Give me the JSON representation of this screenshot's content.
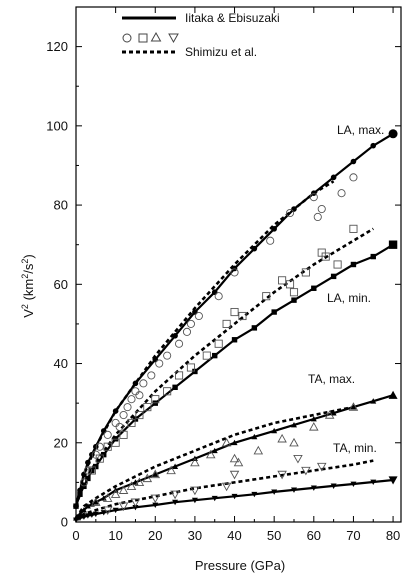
{
  "chart_data": {
    "type": "scatter",
    "xlabel": "Pressure (GPa)",
    "ylabel_main": "V",
    "ylabel_sup1": "2",
    "ylabel_unit": " (km",
    "ylabel_sup2": "2",
    "ylabel_unit2": "/s",
    "ylabel_sup3": "2",
    "ylabel_close": ")",
    "xlim": [
      0,
      82
    ],
    "ylim": [
      0,
      130
    ],
    "xticks": [
      0,
      10,
      20,
      30,
      40,
      50,
      60,
      70,
      80
    ],
    "yticks": [
      0,
      20,
      40,
      60,
      80,
      100,
      120
    ],
    "grid": false,
    "legend_position": "top-left",
    "legend": {
      "solid_label": "Iitaka & Ebisuzaki",
      "dashed_label": "Shimizu et al."
    },
    "annotations": [
      "LA, max.",
      "LA, min.",
      "TA, max.",
      "TA, min."
    ],
    "series": [
      {
        "name": "LA, max.",
        "style": "solid-circle",
        "x": [
          0,
          1,
          2,
          3,
          4,
          5,
          7,
          10,
          15,
          20,
          25,
          30,
          35,
          40,
          45,
          50,
          55,
          60,
          65,
          70,
          75,
          80
        ],
        "y": [
          4,
          8,
          12,
          15,
          17,
          19,
          23,
          28,
          35,
          41,
          47,
          53,
          58,
          64,
          69,
          74,
          79,
          83,
          87,
          91,
          95,
          98
        ]
      },
      {
        "name": "LA, max. (Shimizu)",
        "style": "dashed",
        "x": [
          0,
          2,
          5,
          10,
          20,
          30,
          40,
          50,
          60,
          65
        ],
        "y": [
          4,
          12,
          19,
          28,
          42,
          54,
          65,
          75,
          83,
          86
        ]
      },
      {
        "name": "LA, min.",
        "style": "solid-square",
        "x": [
          0,
          1,
          2,
          3,
          4,
          5,
          7,
          10,
          15,
          20,
          25,
          30,
          35,
          40,
          45,
          50,
          55,
          60,
          65,
          70,
          75,
          80
        ],
        "y": [
          4,
          7,
          9,
          11,
          13,
          14,
          17,
          21,
          26,
          30,
          34,
          38,
          42,
          46,
          49,
          53,
          56,
          59,
          62,
          65,
          67,
          70
        ]
      },
      {
        "name": "LA, min. (Shimizu)",
        "style": "dashed",
        "x": [
          0,
          2,
          5,
          10,
          20,
          30,
          40,
          50,
          60,
          70,
          75
        ],
        "y": [
          4,
          10,
          15,
          22,
          33,
          42,
          50,
          58,
          65,
          71,
          74
        ]
      },
      {
        "name": "TA, max.",
        "style": "solid-triangle-up",
        "x": [
          0,
          1,
          2,
          3,
          4,
          5,
          7,
          10,
          15,
          20,
          25,
          30,
          35,
          40,
          45,
          50,
          55,
          60,
          65,
          70,
          75,
          80
        ],
        "y": [
          1,
          2,
          3,
          4,
          4.5,
          5,
          6,
          8,
          10,
          12,
          14,
          16,
          18,
          20,
          21.5,
          23,
          24.5,
          26,
          27.5,
          29,
          30.5,
          32
        ]
      },
      {
        "name": "TA, max. (Shimizu)",
        "style": "dashed",
        "x": [
          0,
          2,
          5,
          10,
          20,
          30,
          40,
          50,
          60,
          70
        ],
        "y": [
          1,
          4,
          6,
          9,
          14,
          18,
          22,
          25,
          27,
          29
        ]
      },
      {
        "name": "TA, min.",
        "style": "solid-triangle-down",
        "x": [
          0,
          1,
          2,
          3,
          4,
          5,
          7,
          10,
          15,
          20,
          25,
          30,
          35,
          40,
          45,
          50,
          55,
          60,
          65,
          70,
          75,
          80
        ],
        "y": [
          0.5,
          1,
          1.3,
          1.6,
          1.8,
          2,
          2.4,
          3,
          3.7,
          4.3,
          5,
          5.5,
          6,
          6.5,
          7,
          7.6,
          8.1,
          8.6,
          9.1,
          9.6,
          10.1,
          10.6
        ]
      },
      {
        "name": "TA, min. (Shimizu)",
        "style": "dashed",
        "x": [
          0,
          2,
          5,
          10,
          20,
          30,
          40,
          50,
          60,
          70,
          75
        ],
        "y": [
          0.5,
          2,
          3,
          4.5,
          6.5,
          8.5,
          10,
          11.5,
          13,
          14.5,
          15.5
        ]
      }
    ],
    "experimental_points": {
      "circles": [
        [
          2,
          10
        ],
        [
          3,
          13
        ],
        [
          5,
          17
        ],
        [
          6,
          19
        ],
        [
          8,
          22
        ],
        [
          10,
          25
        ],
        [
          11,
          24
        ],
        [
          12,
          27
        ],
        [
          13,
          29
        ],
        [
          14,
          31
        ],
        [
          15,
          33
        ],
        [
          16,
          32
        ],
        [
          17,
          35
        ],
        [
          19,
          37
        ],
        [
          21,
          40
        ],
        [
          23,
          42
        ],
        [
          26,
          45
        ],
        [
          28,
          48
        ],
        [
          29,
          50
        ],
        [
          31,
          52
        ],
        [
          36,
          57
        ],
        [
          40,
          63
        ],
        [
          49,
          71
        ],
        [
          54,
          78
        ],
        [
          60,
          82
        ],
        [
          61,
          77
        ],
        [
          62,
          79
        ],
        [
          67,
          83
        ],
        [
          70,
          87
        ]
      ],
      "squares": [
        [
          4,
          13
        ],
        [
          6,
          16
        ],
        [
          8,
          19
        ],
        [
          10,
          20
        ],
        [
          12,
          22
        ],
        [
          14,
          25
        ],
        [
          16,
          27
        ],
        [
          18,
          29
        ],
        [
          20,
          31
        ],
        [
          23,
          33
        ],
        [
          26,
          37
        ],
        [
          29,
          39
        ],
        [
          33,
          42
        ],
        [
          36,
          45
        ],
        [
          38,
          50
        ],
        [
          40,
          53
        ],
        [
          42,
          52
        ],
        [
          48,
          57
        ],
        [
          52,
          61
        ],
        [
          54,
          60
        ],
        [
          55,
          58
        ],
        [
          58,
          63
        ],
        [
          62,
          68
        ],
        [
          63,
          67
        ],
        [
          66,
          65
        ],
        [
          70,
          74
        ]
      ],
      "triangles_up": [
        [
          5,
          5
        ],
        [
          8,
          6
        ],
        [
          10,
          7
        ],
        [
          12,
          8
        ],
        [
          14,
          9
        ],
        [
          16,
          10
        ],
        [
          18,
          11
        ],
        [
          20,
          12
        ],
        [
          24,
          13
        ],
        [
          30,
          15
        ],
        [
          34,
          17
        ],
        [
          38,
          20
        ],
        [
          40,
          16
        ],
        [
          41,
          15
        ],
        [
          46,
          18
        ],
        [
          52,
          21
        ],
        [
          55,
          20
        ],
        [
          60,
          24
        ],
        [
          64,
          27
        ],
        [
          70,
          29
        ]
      ],
      "triangles_down": [
        [
          8,
          3
        ],
        [
          12,
          4
        ],
        [
          15,
          5
        ],
        [
          20,
          6
        ],
        [
          25,
          7
        ],
        [
          30,
          8
        ],
        [
          38,
          9
        ],
        [
          40,
          12
        ],
        [
          52,
          12
        ],
        [
          56,
          16
        ],
        [
          58,
          13
        ],
        [
          62,
          14
        ]
      ]
    }
  }
}
